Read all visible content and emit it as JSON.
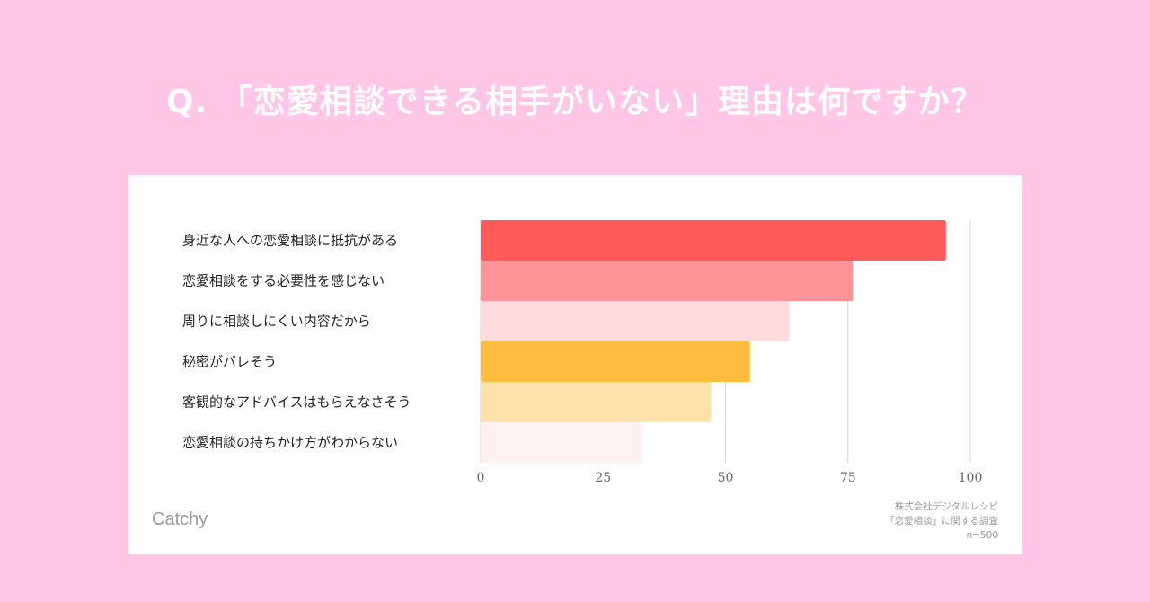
{
  "page": {
    "title": "Q. 「恋愛相談できる相手がいない」理由は何ですか？"
  },
  "brand": {
    "name": "Catchy"
  },
  "source": {
    "company": "株式会社デジタルレシピ",
    "survey": "「恋愛相談」に関する調査",
    "sample": "n=500"
  },
  "chart_data": {
    "type": "bar",
    "orientation": "horizontal",
    "categories": [
      "身近な人への恋愛相談に抵抗がある",
      "恋愛相談をする必要性を感じない",
      "周りに相談しにくい内容だから",
      "秘密がバレそう",
      "客観的なアドバイスはもらえなさそう",
      "恋愛相談の持ちかけ方がわからない"
    ],
    "values": [
      95,
      76,
      63,
      55,
      47,
      33
    ],
    "colors": [
      "#ff5a5a",
      "#ff9397",
      "#ffdcdc",
      "#ffbd3f",
      "#ffe1aa",
      "#fff1f1"
    ],
    "xlim": [
      0,
      100
    ],
    "xticks": [
      0,
      25,
      50,
      75,
      100
    ],
    "grid": true,
    "legend": "none"
  }
}
